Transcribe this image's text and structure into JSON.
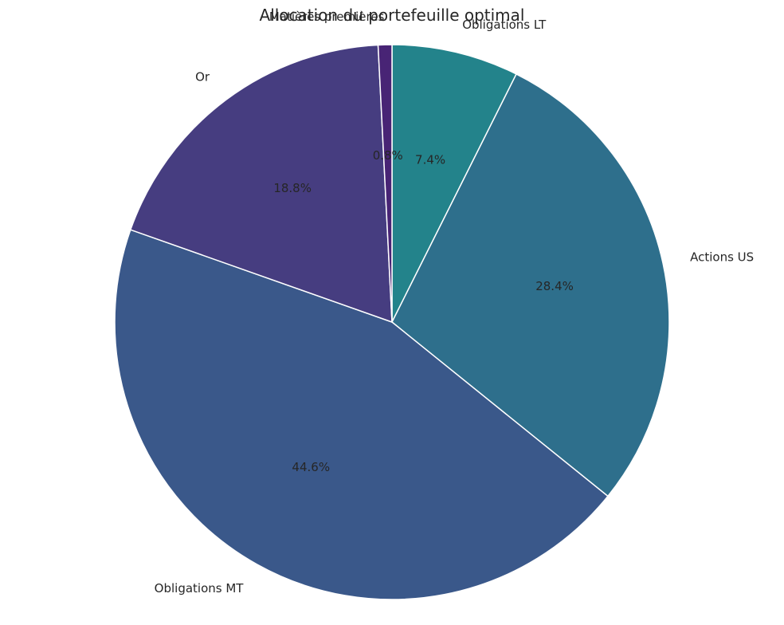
{
  "chart_data": {
    "type": "pie",
    "title": "Allocation du portefeuille optimal",
    "categories": [
      "Obligations LT",
      "Actions US",
      "Obligations MT",
      "Or",
      "Matières premières"
    ],
    "values": [
      7.4,
      28.4,
      44.6,
      18.8,
      0.8
    ],
    "value_labels": [
      "7.4%",
      "28.4%",
      "44.6%",
      "18.8%",
      "0.8%"
    ],
    "colors": [
      "#23838b",
      "#2e6f8c",
      "#3a588a",
      "#463d80",
      "#482475"
    ],
    "start_angle_deg": 90,
    "direction": "clockwise"
  }
}
